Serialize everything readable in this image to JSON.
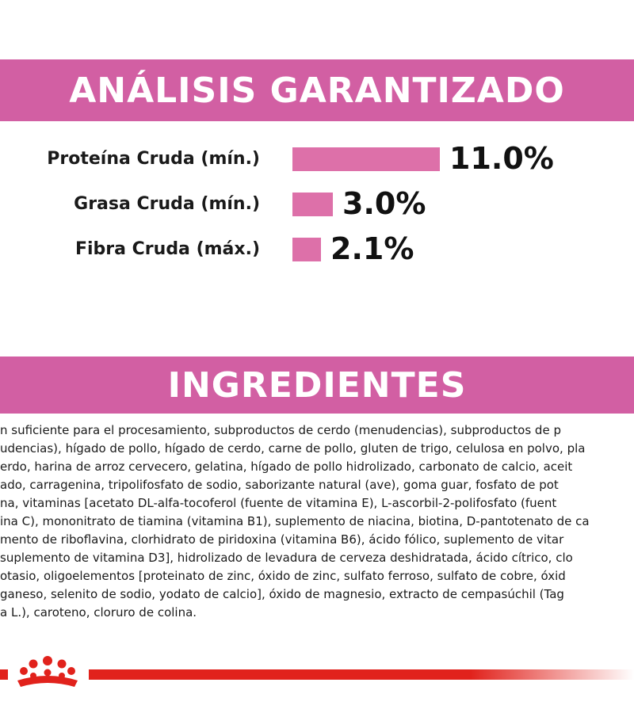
{
  "colors": {
    "banner": "#d25fa3",
    "bar": "#dd70a9",
    "brand_red": "#e1221c"
  },
  "analysis": {
    "title": "ANÁLISIS GARANTIZADO",
    "rows": [
      {
        "label": "Proteína Cruda (mín.)",
        "value_text": "11.0%",
        "value": 11.0
      },
      {
        "label": "Grasa Cruda (mín.)",
        "value_text": "3.0%",
        "value": 3.0
      },
      {
        "label": "Fibra Cruda (máx.)",
        "value_text": "2.1%",
        "value": 2.1
      }
    ]
  },
  "ingredients": {
    "title": "INGREDIENTES",
    "lines": [
      "n suficiente para el procesamiento, subproductos de cerdo (menudencias), subproductos de p",
      "udencias), hígado de pollo, hígado de cerdo, carne de pollo, gluten de trigo, celulosa en polvo, pla",
      "erdo, harina de arroz cervecero, gelatina, hígado de pollo hidrolizado, carbonato de calcio, aceit",
      "ado, carragenina, tripolifosfato de sodio, saborizante natural (ave), goma guar, fosfato de pot",
      "na, vitaminas [acetato DL-alfa-tocoferol (fuente de vitamina E), L-ascorbil-2-polifosfato (fuent",
      "ina C), mononitrato de tiamina (vitamina B1), suplemento de niacina, biotina, D-pantotenato de ca",
      "mento de riboflavina, clorhidrato de piridoxina (vitamina B6), ácido fólico, suplemento de vitar",
      "suplemento de vitamina D3], hidrolizado de levadura de cerveza deshidratada, ácido cítrico, clo",
      "otasio, oligoelementos [proteinato de zinc, óxido de zinc, sulfato ferroso, sulfato de cobre, óxid",
      "ganeso, selenito de sodio, yodato de calcio], óxido de magnesio, extracto de cempasúchil (Tag",
      "a L.), caroteno, cloruro de colina."
    ]
  },
  "footer": {
    "logo_icon": "royal-crown-logo-icon"
  }
}
